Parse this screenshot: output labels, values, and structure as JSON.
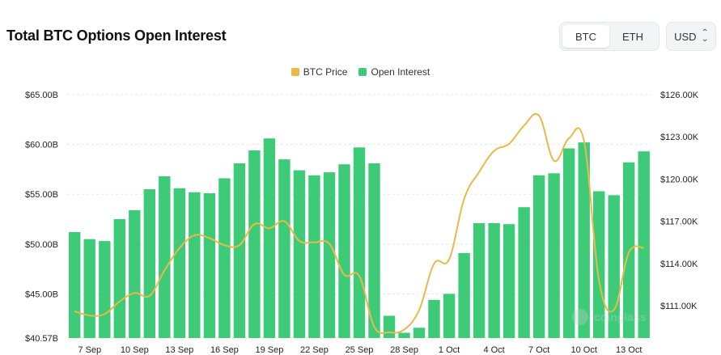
{
  "header": {
    "title": "Total BTC Options Open Interest"
  },
  "toggle": {
    "options": [
      "BTC",
      "ETH"
    ],
    "active": "BTC"
  },
  "currency": {
    "value": "USD",
    "icon": "chevron-updown-icon"
  },
  "legend": {
    "price_label": "BTC Price",
    "oi_label": "Open Interest"
  },
  "colors": {
    "bar": "#3ecb78",
    "line": "#e9b949",
    "grid": "#e5e7eb"
  },
  "watermark": "coinglass",
  "chart_data": {
    "type": "bar",
    "categories": [
      "6 Sep",
      "7 Sep",
      "8 Sep",
      "9 Sep",
      "10 Sep",
      "11 Sep",
      "12 Sep",
      "13 Sep",
      "14 Sep",
      "15 Sep",
      "16 Sep",
      "17 Sep",
      "18 Sep",
      "19 Sep",
      "20 Sep",
      "21 Sep",
      "22 Sep",
      "23 Sep",
      "24 Sep",
      "25 Sep",
      "26 Sep",
      "27 Sep",
      "28 Sep",
      "29 Sep",
      "30 Sep",
      "1 Oct",
      "2 Oct",
      "3 Oct",
      "4 Oct",
      "5 Oct",
      "6 Oct",
      "7 Oct",
      "8 Oct",
      "9 Oct",
      "10 Oct",
      "11 Oct",
      "12 Oct",
      "13 Oct",
      "14 Oct"
    ],
    "x_tick_labels": [
      "7 Sep",
      "10 Sep",
      "13 Sep",
      "16 Sep",
      "19 Sep",
      "22 Sep",
      "25 Sep",
      "28 Sep",
      "1 Oct",
      "4 Oct",
      "7 Oct",
      "10 Oct",
      "13 Oct"
    ],
    "series": [
      {
        "name": "Open Interest",
        "type": "bar",
        "axis": "left",
        "values": [
          51.2,
          50.5,
          50.3,
          52.5,
          53.4,
          55.5,
          56.8,
          55.6,
          55.2,
          55.1,
          56.6,
          58.1,
          59.4,
          60.6,
          58.5,
          57.4,
          56.9,
          57.2,
          58.0,
          59.7,
          58.1,
          42.8,
          41.1,
          41.6,
          44.4,
          45.0,
          49.1,
          52.1,
          52.1,
          52.0,
          53.7,
          56.9,
          57.1,
          59.6,
          60.2,
          55.3,
          54.9,
          58.2,
          59.3
        ]
      },
      {
        "name": "BTC Price",
        "type": "line",
        "axis": "right",
        "values": [
          110.6,
          110.3,
          110.4,
          111.3,
          111.9,
          111.7,
          113.5,
          115.1,
          116.0,
          115.8,
          115.3,
          115.3,
          116.8,
          116.5,
          117.0,
          115.6,
          115.5,
          115.4,
          113.2,
          113.1,
          109.5,
          109.1,
          109.3,
          110.7,
          114.0,
          114.3,
          118.6,
          120.5,
          122.0,
          122.5,
          123.8,
          124.5,
          121.3,
          122.9,
          122.7,
          112.8,
          110.7,
          114.8,
          115.1
        ]
      }
    ],
    "y_left": {
      "ticks": [
        "$65.00B",
        "$60.00B",
        "$55.00B",
        "$50.00B",
        "$45.00B",
        "$40.57B"
      ],
      "tick_values": [
        65,
        60,
        55,
        50,
        45,
        40.57
      ],
      "range": [
        40.57,
        65
      ]
    },
    "y_right": {
      "ticks": [
        "$126.00K",
        "$123.00K",
        "$120.00K",
        "$117.00K",
        "$114.00K",
        "$111.00K"
      ],
      "tick_values": [
        126,
        123,
        120,
        117,
        114,
        111
      ],
      "range": [
        108.7,
        126
      ]
    },
    "grid": true,
    "legend_position": "top-center"
  }
}
